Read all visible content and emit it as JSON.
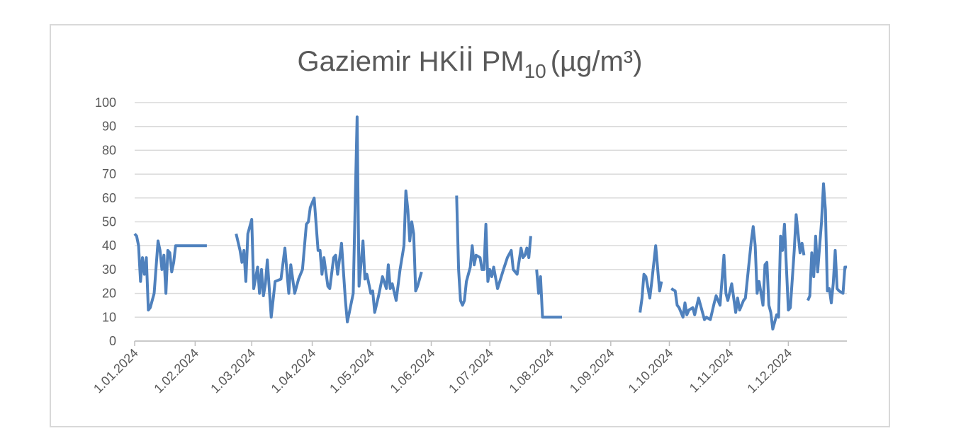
{
  "chart_data": {
    "type": "line",
    "title": {
      "text": "Gaziemir HKİİ PM",
      "subscript": "10",
      "unit": "(µg/m³)"
    },
    "x": [
      "1.01.2024",
      "2.01.2024",
      "3.01.2024",
      "4.01.2024",
      "5.01.2024",
      "6.01.2024",
      "7.01.2024",
      "8.01.2024",
      "9.01.2024",
      "11.01.2024",
      "13.01.2024",
      "14.01.2024",
      "15.01.2024",
      "16.01.2024",
      "17.01.2024",
      "18.01.2024",
      "19.01.2024",
      "20.01.2024",
      "21.01.2024",
      "22.01.2024",
      "24.01.2024",
      "27.01.2024",
      "31.01.2024",
      "3.02.2024",
      "7.02.2024",
      "15.02.2024",
      "22.02.2024",
      "24.02.2024",
      "25.02.2024",
      "26.02.2024",
      "27.02.2024",
      "28.02.2024",
      "1.03.2024",
      "2.03.2024",
      "4.03.2024",
      "5.03.2024",
      "6.03.2024",
      "7.03.2024",
      "8.03.2024",
      "9.03.2024",
      "11.03.2024",
      "13.03.2024",
      "16.03.2024",
      "18.03.2024",
      "20.03.2024",
      "21.03.2024",
      "23.03.2024",
      "25.03.2024",
      "27.03.2024",
      "29.03.2024",
      "30.03.2024",
      "31.03.2024",
      "2.04.2024",
      "4.04.2024",
      "5.04.2024",
      "6.04.2024",
      "7.04.2024",
      "9.04.2024",
      "10.04.2024",
      "12.04.2024",
      "13.04.2024",
      "14.04.2024",
      "16.04.2024",
      "18.04.2024",
      "19.04.2024",
      "20.04.2024",
      "22.04.2024",
      "24.04.2024",
      "25.04.2024",
      "27.04.2024",
      "28.04.2024",
      "29.04.2024",
      "1.05.2024",
      "2.05.2024",
      "3.05.2024",
      "5.05.2024",
      "7.05.2024",
      "9.05.2024",
      "10.05.2024",
      "11.05.2024",
      "12.05.2024",
      "14.05.2024",
      "16.05.2024",
      "18.05.2024",
      "19.05.2024",
      "20.05.2024",
      "21.05.2024",
      "22.05.2024",
      "23.05.2024",
      "24.05.2024",
      "25.05.2024",
      "27.05.2024",
      "5.06.2024",
      "14.06.2024",
      "15.06.2024",
      "16.06.2024",
      "17.06.2024",
      "18.06.2024",
      "19.06.2024",
      "21.06.2024",
      "22.06.2024",
      "23.06.2024",
      "24.06.2024",
      "26.06.2024",
      "27.06.2024",
      "28.06.2024",
      "29.06.2024",
      "30.06.2024",
      "1.07.2024",
      "2.07.2024",
      "3.07.2024",
      "5.07.2024",
      "8.07.2024",
      "10.07.2024",
      "12.07.2024",
      "13.07.2024",
      "15.07.2024",
      "17.07.2024",
      "18.07.2024",
      "19.07.2024",
      "20.07.2024",
      "21.07.2024",
      "22.07.2024",
      "23.07.2024",
      "25.07.2024",
      "26.07.2024",
      "27.07.2024",
      "28.07.2024",
      "1.08.2024",
      "4.08.2024",
      "7.08.2024",
      "1.09.2024",
      "16.09.2024",
      "17.09.2024",
      "18.09.2024",
      "19.09.2024",
      "21.09.2024",
      "22.09.2024",
      "24.09.2024",
      "26.09.2024",
      "27.09.2024",
      "29.09.2024",
      "2.10.2024",
      "4.10.2024",
      "5.10.2024",
      "6.10.2024",
      "8.10.2024",
      "9.10.2024",
      "10.10.2024",
      "11.10.2024",
      "13.10.2024",
      "14.10.2024",
      "16.10.2024",
      "17.10.2024",
      "19.10.2024",
      "20.10.2024",
      "22.10.2024",
      "24.10.2024",
      "25.10.2024",
      "27.10.2024",
      "29.10.2024",
      "30.10.2024",
      "31.10.2024",
      "2.11.2024",
      "4.11.2024",
      "5.11.2024",
      "6.11.2024",
      "8.11.2024",
      "9.11.2024",
      "12.11.2024",
      "13.11.2024",
      "14.11.2024",
      "15.11.2024",
      "16.11.2024",
      "18.11.2024",
      "19.11.2024",
      "20.11.2024",
      "21.11.2024",
      "22.11.2024",
      "23.11.2024",
      "25.11.2024",
      "26.11.2024",
      "27.11.2024",
      "28.11.2024",
      "29.11.2024",
      "1.12.2024",
      "2.12.2024",
      "4.12.2024",
      "5.12.2024",
      "7.12.2024",
      "8.12.2024",
      "9.12.2024",
      "10.12.2024",
      "11.12.2024",
      "12.12.2024",
      "13.12.2024",
      "14.12.2024",
      "15.12.2024",
      "16.12.2024",
      "18.12.2024",
      "19.12.2024",
      "20.12.2024",
      "21.12.2024",
      "22.12.2024",
      "23.12.2024",
      "24.12.2024",
      "25.12.2024",
      "26.12.2024",
      "27.12.2024",
      "29.12.2024",
      "30.12.2024",
      "31.12.2024"
    ],
    "series": [
      {
        "name": "PM10",
        "color": "#4f81bd",
        "values": [
          45,
          44,
          40,
          25,
          35,
          28,
          35,
          13,
          14,
          20,
          42,
          38,
          30,
          36,
          20,
          38,
          37,
          29,
          33,
          40,
          40,
          40,
          40,
          40,
          40,
          null,
          45,
          38,
          33,
          38,
          25,
          45,
          51,
          22,
          31,
          20,
          30,
          19,
          24,
          34,
          10,
          25,
          26,
          39,
          20,
          32,
          20,
          26,
          30,
          49,
          50,
          56,
          60,
          38,
          38,
          28,
          35,
          23,
          22,
          35,
          36,
          28,
          41,
          17,
          8,
          12,
          20,
          94,
          23,
          42,
          26,
          28,
          20,
          21,
          12,
          19,
          27,
          22,
          32,
          22,
          24,
          17,
          30,
          40,
          63,
          55,
          42,
          50,
          45,
          21,
          23,
          29,
          null,
          61,
          30,
          17,
          15,
          17,
          25,
          31,
          40,
          32,
          36,
          35,
          30,
          30,
          49,
          25,
          30,
          27,
          31,
          22,
          30,
          35,
          38,
          30,
          28,
          39,
          35,
          36,
          39,
          35,
          44,
          null,
          30,
          20,
          27,
          10,
          10,
          10,
          10,
          null,
          12,
          18,
          28,
          27,
          18,
          25,
          40,
          21,
          25,
          null,
          22,
          21,
          15,
          14,
          10,
          16,
          11,
          13,
          14,
          11,
          18,
          15,
          9,
          10,
          9,
          16,
          19,
          15,
          36,
          20,
          17,
          24,
          12,
          18,
          13,
          17,
          18,
          42,
          48,
          40,
          20,
          25,
          15,
          32,
          33,
          15,
          12,
          5,
          11,
          10,
          44,
          38,
          49,
          13,
          14,
          38,
          53,
          37,
          41,
          36,
          null,
          17,
          19,
          37,
          27,
          44,
          29,
          50,
          66,
          55,
          21,
          22,
          16,
          24,
          38,
          22,
          21,
          20,
          31,
          31
        ]
      }
    ],
    "xlim": [
      "1.01.2024",
      "31.12.2024"
    ],
    "xticks": [
      "1.01.2024",
      "1.02.2024",
      "1.03.2024",
      "1.04.2024",
      "1.05.2024",
      "1.06.2024",
      "1.07.2024",
      "1.08.2024",
      "1.09.2024",
      "1.10.2024",
      "1.11.2024",
      "1.12.2024"
    ],
    "ylim": [
      0,
      100
    ],
    "yticks": [
      0,
      10,
      20,
      30,
      40,
      50,
      60,
      70,
      80,
      90,
      100
    ],
    "grid": true
  }
}
